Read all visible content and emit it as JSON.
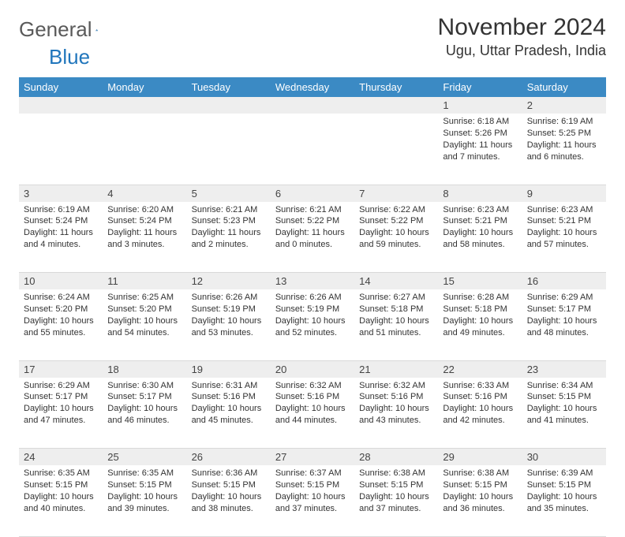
{
  "brand": {
    "part1": "General",
    "part2": "Blue"
  },
  "title": "November 2024",
  "location": "Ugu, Uttar Pradesh, India",
  "colors": {
    "header_bg": "#3b8ac4",
    "header_text": "#ffffff",
    "daynum_bg": "#eeeeee",
    "grid_line": "#d9d9d9",
    "brand_gray": "#5a5a5a",
    "brand_blue": "#2176bc",
    "text": "#333333",
    "page_bg": "#ffffff"
  },
  "weekdays": [
    "Sunday",
    "Monday",
    "Tuesday",
    "Wednesday",
    "Thursday",
    "Friday",
    "Saturday"
  ],
  "weeks": [
    {
      "nums": [
        "",
        "",
        "",
        "",
        "",
        "1",
        "2"
      ],
      "cells": [
        null,
        null,
        null,
        null,
        null,
        {
          "sunrise": "Sunrise: 6:18 AM",
          "sunset": "Sunset: 5:26 PM",
          "day1": "Daylight: 11 hours",
          "day2": "and 7 minutes."
        },
        {
          "sunrise": "Sunrise: 6:19 AM",
          "sunset": "Sunset: 5:25 PM",
          "day1": "Daylight: 11 hours",
          "day2": "and 6 minutes."
        }
      ]
    },
    {
      "nums": [
        "3",
        "4",
        "5",
        "6",
        "7",
        "8",
        "9"
      ],
      "cells": [
        {
          "sunrise": "Sunrise: 6:19 AM",
          "sunset": "Sunset: 5:24 PM",
          "day1": "Daylight: 11 hours",
          "day2": "and 4 minutes."
        },
        {
          "sunrise": "Sunrise: 6:20 AM",
          "sunset": "Sunset: 5:24 PM",
          "day1": "Daylight: 11 hours",
          "day2": "and 3 minutes."
        },
        {
          "sunrise": "Sunrise: 6:21 AM",
          "sunset": "Sunset: 5:23 PM",
          "day1": "Daylight: 11 hours",
          "day2": "and 2 minutes."
        },
        {
          "sunrise": "Sunrise: 6:21 AM",
          "sunset": "Sunset: 5:22 PM",
          "day1": "Daylight: 11 hours",
          "day2": "and 0 minutes."
        },
        {
          "sunrise": "Sunrise: 6:22 AM",
          "sunset": "Sunset: 5:22 PM",
          "day1": "Daylight: 10 hours",
          "day2": "and 59 minutes."
        },
        {
          "sunrise": "Sunrise: 6:23 AM",
          "sunset": "Sunset: 5:21 PM",
          "day1": "Daylight: 10 hours",
          "day2": "and 58 minutes."
        },
        {
          "sunrise": "Sunrise: 6:23 AM",
          "sunset": "Sunset: 5:21 PM",
          "day1": "Daylight: 10 hours",
          "day2": "and 57 minutes."
        }
      ]
    },
    {
      "nums": [
        "10",
        "11",
        "12",
        "13",
        "14",
        "15",
        "16"
      ],
      "cells": [
        {
          "sunrise": "Sunrise: 6:24 AM",
          "sunset": "Sunset: 5:20 PM",
          "day1": "Daylight: 10 hours",
          "day2": "and 55 minutes."
        },
        {
          "sunrise": "Sunrise: 6:25 AM",
          "sunset": "Sunset: 5:20 PM",
          "day1": "Daylight: 10 hours",
          "day2": "and 54 minutes."
        },
        {
          "sunrise": "Sunrise: 6:26 AM",
          "sunset": "Sunset: 5:19 PM",
          "day1": "Daylight: 10 hours",
          "day2": "and 53 minutes."
        },
        {
          "sunrise": "Sunrise: 6:26 AM",
          "sunset": "Sunset: 5:19 PM",
          "day1": "Daylight: 10 hours",
          "day2": "and 52 minutes."
        },
        {
          "sunrise": "Sunrise: 6:27 AM",
          "sunset": "Sunset: 5:18 PM",
          "day1": "Daylight: 10 hours",
          "day2": "and 51 minutes."
        },
        {
          "sunrise": "Sunrise: 6:28 AM",
          "sunset": "Sunset: 5:18 PM",
          "day1": "Daylight: 10 hours",
          "day2": "and 49 minutes."
        },
        {
          "sunrise": "Sunrise: 6:29 AM",
          "sunset": "Sunset: 5:17 PM",
          "day1": "Daylight: 10 hours",
          "day2": "and 48 minutes."
        }
      ]
    },
    {
      "nums": [
        "17",
        "18",
        "19",
        "20",
        "21",
        "22",
        "23"
      ],
      "cells": [
        {
          "sunrise": "Sunrise: 6:29 AM",
          "sunset": "Sunset: 5:17 PM",
          "day1": "Daylight: 10 hours",
          "day2": "and 47 minutes."
        },
        {
          "sunrise": "Sunrise: 6:30 AM",
          "sunset": "Sunset: 5:17 PM",
          "day1": "Daylight: 10 hours",
          "day2": "and 46 minutes."
        },
        {
          "sunrise": "Sunrise: 6:31 AM",
          "sunset": "Sunset: 5:16 PM",
          "day1": "Daylight: 10 hours",
          "day2": "and 45 minutes."
        },
        {
          "sunrise": "Sunrise: 6:32 AM",
          "sunset": "Sunset: 5:16 PM",
          "day1": "Daylight: 10 hours",
          "day2": "and 44 minutes."
        },
        {
          "sunrise": "Sunrise: 6:32 AM",
          "sunset": "Sunset: 5:16 PM",
          "day1": "Daylight: 10 hours",
          "day2": "and 43 minutes."
        },
        {
          "sunrise": "Sunrise: 6:33 AM",
          "sunset": "Sunset: 5:16 PM",
          "day1": "Daylight: 10 hours",
          "day2": "and 42 minutes."
        },
        {
          "sunrise": "Sunrise: 6:34 AM",
          "sunset": "Sunset: 5:15 PM",
          "day1": "Daylight: 10 hours",
          "day2": "and 41 minutes."
        }
      ]
    },
    {
      "nums": [
        "24",
        "25",
        "26",
        "27",
        "28",
        "29",
        "30"
      ],
      "cells": [
        {
          "sunrise": "Sunrise: 6:35 AM",
          "sunset": "Sunset: 5:15 PM",
          "day1": "Daylight: 10 hours",
          "day2": "and 40 minutes."
        },
        {
          "sunrise": "Sunrise: 6:35 AM",
          "sunset": "Sunset: 5:15 PM",
          "day1": "Daylight: 10 hours",
          "day2": "and 39 minutes."
        },
        {
          "sunrise": "Sunrise: 6:36 AM",
          "sunset": "Sunset: 5:15 PM",
          "day1": "Daylight: 10 hours",
          "day2": "and 38 minutes."
        },
        {
          "sunrise": "Sunrise: 6:37 AM",
          "sunset": "Sunset: 5:15 PM",
          "day1": "Daylight: 10 hours",
          "day2": "and 37 minutes."
        },
        {
          "sunrise": "Sunrise: 6:38 AM",
          "sunset": "Sunset: 5:15 PM",
          "day1": "Daylight: 10 hours",
          "day2": "and 37 minutes."
        },
        {
          "sunrise": "Sunrise: 6:38 AM",
          "sunset": "Sunset: 5:15 PM",
          "day1": "Daylight: 10 hours",
          "day2": "and 36 minutes."
        },
        {
          "sunrise": "Sunrise: 6:39 AM",
          "sunset": "Sunset: 5:15 PM",
          "day1": "Daylight: 10 hours",
          "day2": "and 35 minutes."
        }
      ]
    }
  ]
}
